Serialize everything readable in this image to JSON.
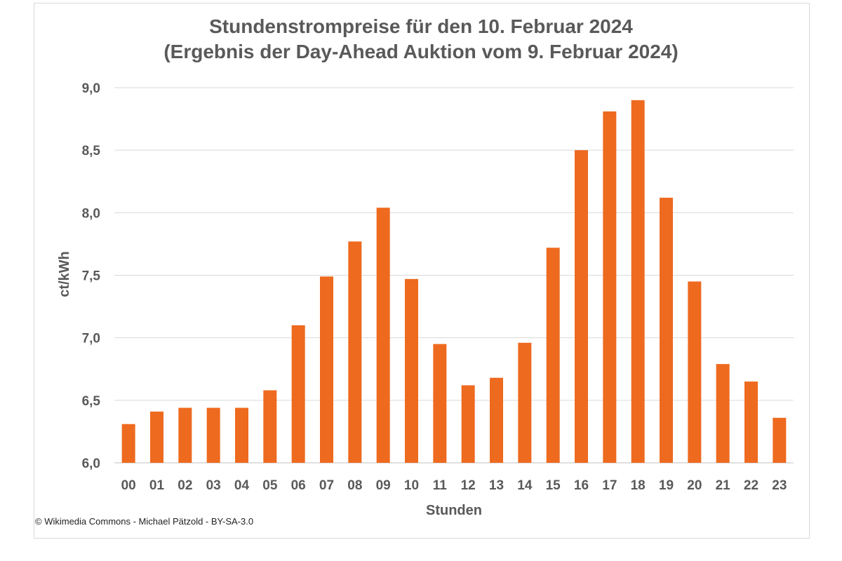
{
  "chart_data": {
    "type": "bar",
    "title": "Stundenstrompreise für den 10. Februar 2024",
    "subtitle": "(Ergebnis der Day-Ahead Auktion vom 9. Februar 2024)",
    "xlabel": "Stunden",
    "ylabel": "ct/kWh",
    "ylim": [
      6.0,
      9.0
    ],
    "yticks": [
      "6,0",
      "6,5",
      "7,0",
      "7,5",
      "8,0",
      "8,5",
      "9,0"
    ],
    "ytick_values": [
      6.0,
      6.5,
      7.0,
      7.5,
      8.0,
      8.5,
      9.0
    ],
    "grid": true,
    "bar_color": "#ee6a1f",
    "categories": [
      "00",
      "01",
      "02",
      "03",
      "04",
      "05",
      "06",
      "07",
      "08",
      "09",
      "10",
      "11",
      "12",
      "13",
      "14",
      "15",
      "16",
      "17",
      "18",
      "19",
      "20",
      "21",
      "22",
      "23"
    ],
    "values": [
      6.31,
      6.41,
      6.44,
      6.44,
      6.44,
      6.58,
      7.1,
      7.49,
      7.77,
      8.04,
      7.47,
      6.95,
      6.62,
      6.68,
      6.96,
      7.72,
      8.5,
      8.81,
      8.9,
      8.12,
      7.45,
      6.79,
      6.65,
      6.36
    ]
  },
  "credit": "© Wikimedia Commons - Michael Pätzold - BY-SA-3.0"
}
